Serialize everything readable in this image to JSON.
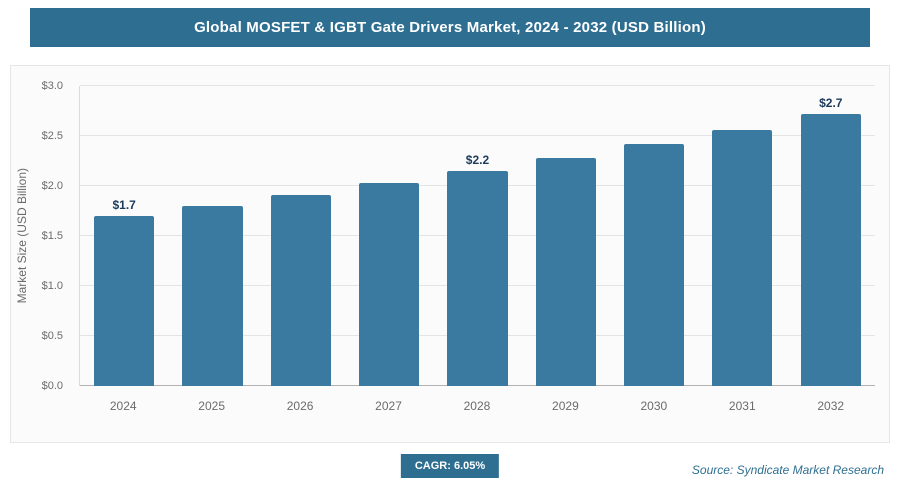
{
  "header": {
    "title": "Global MOSFET & IGBT Gate Drivers Market, 2024 - 2032 (USD Billion)"
  },
  "chart_data": {
    "type": "bar",
    "title": "Global MOSFET & IGBT Gate Drivers Market, 2024 - 2032 (USD Billion)",
    "categories": [
      "2024",
      "2025",
      "2026",
      "2027",
      "2028",
      "2029",
      "2030",
      "2031",
      "2032"
    ],
    "values": [
      1.7,
      1.8,
      1.91,
      2.03,
      2.15,
      2.28,
      2.42,
      2.56,
      2.72
    ],
    "bar_labels": [
      "$1.7",
      "",
      "",
      "",
      "$2.2",
      "",
      "",
      "",
      "$2.7"
    ],
    "ylabel": "Market Size (USD Billion)",
    "xlabel": "",
    "ylim": [
      0,
      3.0
    ],
    "yticks": [
      "$0.0",
      "$0.5",
      "$1.0",
      "$1.5",
      "$2.0",
      "$2.5",
      "$3.0"
    ],
    "grid": "horizontal",
    "legend": "none"
  },
  "footer": {
    "cagr_badge": "CAGR: 6.05%",
    "source": "Source: Syndicate Market Research"
  },
  "colors": {
    "header_bg": "#2e6f91",
    "header_text": "#ffffff",
    "bar": "#3b7aa0",
    "grid_line": "#e4e4e4",
    "axis_line": "#b3b3b3",
    "tick_text": "#6b6b6b",
    "bar_label_text": "#1b3a5c",
    "badge_bg": "#2e6f91",
    "badge_text": "#ffffff",
    "source_text": "#2e6f91",
    "panel_bg": "#fbfbfb",
    "panel_border": "#e4e7e9"
  }
}
